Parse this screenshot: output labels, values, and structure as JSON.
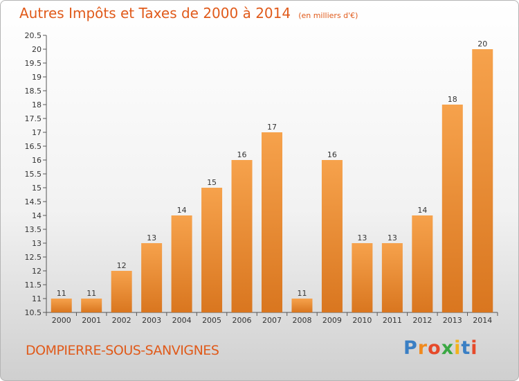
{
  "title": "Autres Impôts et Taxes de 2000 à 2014",
  "subtitle": "(en milliers d'€)",
  "city": "DOMPIERRE-SOUS-SANVIGNES",
  "logo": {
    "letters": [
      "P",
      "r",
      "o",
      "x",
      "i",
      "t",
      "i"
    ],
    "colors": [
      "#3a7fc4",
      "#f08a1e",
      "#e64a2a",
      "#3aa843",
      "#f2b21c",
      "#3a7fc4",
      "#e64a2a"
    ]
  },
  "colors": {
    "bar_top": "#f6a24c",
    "bar_bottom": "#d9761f",
    "accent": "#e05a1a"
  },
  "chart_data": {
    "type": "bar",
    "categories": [
      "2000",
      "2001",
      "2002",
      "2003",
      "2004",
      "2005",
      "2006",
      "2007",
      "2008",
      "2009",
      "2010",
      "2011",
      "2012",
      "2013",
      "2014"
    ],
    "values": [
      11,
      11,
      12,
      13,
      14,
      15,
      16,
      17,
      11,
      16,
      13,
      13,
      14,
      18,
      20
    ],
    "data_labels": [
      "11",
      "11",
      "12",
      "13",
      "14",
      "15",
      "16",
      "17",
      "11",
      "16",
      "13",
      "13",
      "14",
      "18",
      "20"
    ],
    "ylim": [
      10.5,
      20.5
    ],
    "yticks": [
      10.5,
      11,
      11.5,
      12,
      12.5,
      13,
      13.5,
      14,
      14.5,
      15,
      15.5,
      16,
      16.5,
      17,
      17.5,
      18,
      18.5,
      19,
      19.5,
      20,
      20.5
    ],
    "ytick_labels": [
      "10.5",
      "11",
      "11.5",
      "12",
      "12.5",
      "13",
      "13.5",
      "14",
      "14.5",
      "15",
      "15.5",
      "16",
      "16.5",
      "17",
      "17.5",
      "18",
      "18.5",
      "19",
      "19.5",
      "20",
      "20.5"
    ],
    "title": "Autres Impôts et Taxes de 2000 à 2014",
    "xlabel": "",
    "ylabel": "",
    "grid": false
  }
}
